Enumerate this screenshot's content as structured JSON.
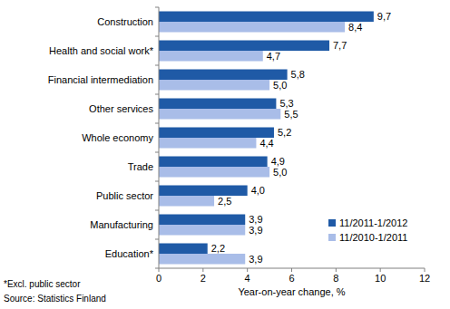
{
  "chart_data": {
    "type": "bar",
    "orientation": "horizontal",
    "categories": [
      "Construction",
      "Health and social work*",
      "Financial intermediation",
      "Other services",
      "Whole economy",
      "Trade",
      "Public sector",
      "Manufacturing",
      "Education*"
    ],
    "series": [
      {
        "name": "11/2011-1/2012",
        "color": "#1f5aa6",
        "values": [
          9.7,
          7.7,
          5.8,
          5.3,
          5.2,
          4.9,
          4.0,
          3.9,
          2.2
        ],
        "value_labels": [
          "9,7",
          "7,7",
          "5,8",
          "5,3",
          "5,2",
          "4,9",
          "4,0",
          "3,9",
          "2,2"
        ]
      },
      {
        "name": "11/2010-1/2011",
        "color": "#a9bde8",
        "values": [
          8.4,
          4.7,
          5.0,
          5.5,
          4.4,
          5.0,
          2.5,
          3.9,
          3.9
        ],
        "value_labels": [
          "8,4",
          "4,7",
          "5,0",
          "5,5",
          "4,4",
          "5,0",
          "2,5",
          "3,9",
          "3,9"
        ]
      }
    ],
    "x_label": "Year-on-year change, %",
    "xlim": [
      0,
      12
    ],
    "xticks": [
      0,
      2,
      4,
      6,
      8,
      10,
      12
    ],
    "grid": false,
    "legend": "lower right",
    "data_labels": true,
    "annotations": [
      "*Excl. public sector",
      "Source: Statistics Finland"
    ]
  }
}
